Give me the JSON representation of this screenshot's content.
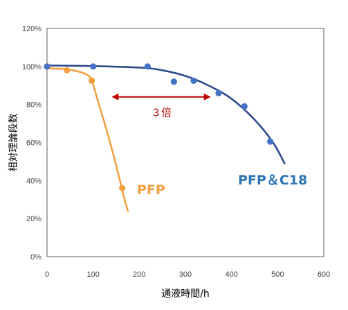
{
  "chart_data": {
    "type": "scatter",
    "xlabel": "通液時間/h",
    "ylabel": "相対理論段数",
    "xlim": [
      0,
      600
    ],
    "ylim": [
      0,
      120
    ],
    "xticks": [
      0,
      100,
      200,
      300,
      400,
      500,
      600
    ],
    "yticks": [
      0,
      20,
      40,
      60,
      80,
      100,
      120
    ],
    "yticks_labels": [
      "0%",
      "20%",
      "40%",
      "60%",
      "80%",
      "100%",
      "120%"
    ],
    "grid": false,
    "series": [
      {
        "name": "PFP",
        "color": "#F4A040",
        "points": [
          {
            "x": 0,
            "y": 100
          },
          {
            "x": 43,
            "y": 98
          },
          {
            "x": 97,
            "y": 92.5
          },
          {
            "x": 163,
            "y": 36
          }
        ],
        "trend": [
          {
            "x": 0,
            "y": 99
          },
          {
            "x": 40,
            "y": 98.6
          },
          {
            "x": 70,
            "y": 97.2
          },
          {
            "x": 88,
            "y": 95.5
          },
          {
            "x": 98,
            "y": 92
          },
          {
            "x": 110,
            "y": 82
          },
          {
            "x": 125,
            "y": 70
          },
          {
            "x": 140,
            "y": 57
          },
          {
            "x": 155,
            "y": 43
          },
          {
            "x": 165,
            "y": 33
          },
          {
            "x": 175,
            "y": 24
          }
        ]
      },
      {
        "name": "PFP＆C18",
        "color": "#2E4A8C",
        "point_color": "#4472C4",
        "points": [
          {
            "x": 0,
            "y": 100
          },
          {
            "x": 100,
            "y": 100
          },
          {
            "x": 218,
            "y": 100
          },
          {
            "x": 275,
            "y": 92
          },
          {
            "x": 318,
            "y": 92.5
          },
          {
            "x": 372,
            "y": 86
          },
          {
            "x": 428,
            "y": 79
          },
          {
            "x": 484,
            "y": 60.5
          }
        ],
        "trend": [
          {
            "x": 0,
            "y": 100.5
          },
          {
            "x": 100,
            "y": 100.2
          },
          {
            "x": 200,
            "y": 99.4
          },
          {
            "x": 250,
            "y": 98
          },
          {
            "x": 300,
            "y": 95
          },
          {
            "x": 350,
            "y": 90
          },
          {
            "x": 400,
            "y": 83
          },
          {
            "x": 450,
            "y": 72
          },
          {
            "x": 490,
            "y": 60
          },
          {
            "x": 515,
            "y": 49
          }
        ]
      }
    ],
    "annotations": [
      {
        "type": "double-arrow",
        "text": "３倍",
        "x1": 140,
        "x2": 355,
        "y": 84,
        "color": "#C00000"
      }
    ]
  }
}
